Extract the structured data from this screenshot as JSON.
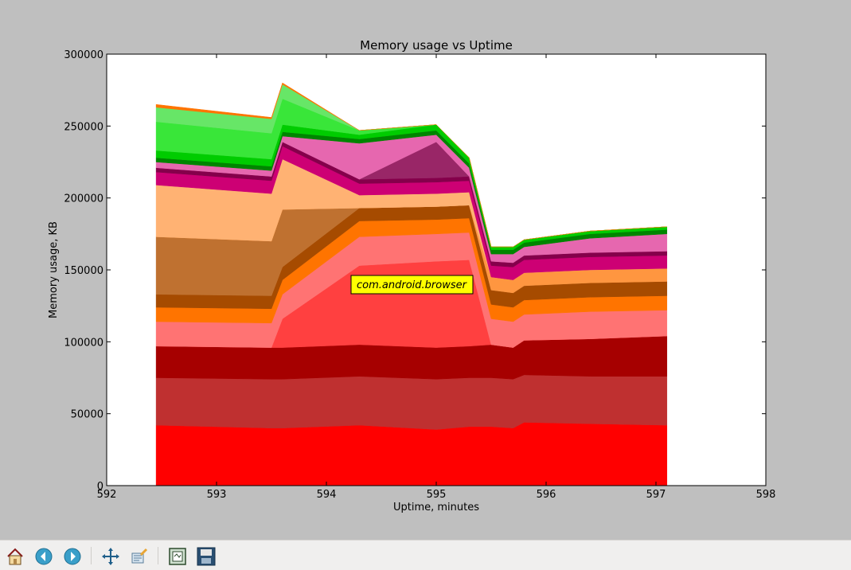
{
  "chart_data": {
    "type": "area",
    "stacked": true,
    "title": "Memory usage vs Uptime",
    "xlabel": "Uptime, minutes",
    "ylabel": "Memory usage, KB",
    "xlim": [
      592,
      598
    ],
    "ylim": [
      0,
      300000
    ],
    "xticks": [
      "592",
      "593",
      "594",
      "595",
      "596",
      "597",
      "598"
    ],
    "yticks": [
      "0",
      "50000",
      "100000",
      "150000",
      "200000",
      "250000",
      "300000"
    ],
    "grid": false,
    "annotation": "com.android.browser",
    "x": [
      592.45,
      593.5,
      593.6,
      594.3,
      595.0,
      595.3,
      595.5,
      595.7,
      595.8,
      596.4,
      597.1
    ],
    "series": [
      {
        "color": "#ff0000",
        "values": [
          42000,
          40000,
          40000,
          42000,
          39000,
          41000,
          41000,
          40000,
          44000,
          43000,
          42000
        ]
      },
      {
        "color": "#bf3030",
        "values": [
          33000,
          34000,
          34000,
          34000,
          35000,
          34000,
          34000,
          34000,
          33000,
          33000,
          34000
        ]
      },
      {
        "color": "#a60000",
        "values": [
          22000,
          22000,
          22000,
          22000,
          22000,
          22000,
          23000,
          22000,
          24000,
          26000,
          28000
        ]
      },
      {
        "color": "#ff4040",
        "values": [
          0,
          0,
          20000,
          55000,
          60000,
          60000,
          0,
          0,
          0,
          0,
          0
        ]
      },
      {
        "color": "#ff7373",
        "values": [
          17000,
          17000,
          17000,
          20000,
          19000,
          19000,
          18000,
          18000,
          18000,
          19000,
          18000
        ]
      },
      {
        "color": "#ff7400",
        "values": [
          10000,
          10000,
          10000,
          11000,
          10000,
          10000,
          10000,
          10000,
          10000,
          10000,
          10000
        ]
      },
      {
        "color": "#a64b00",
        "values": [
          9000,
          9000,
          9000,
          9000,
          9000,
          9000,
          10000,
          10000,
          10000,
          10000,
          10000
        ]
      },
      {
        "color": "#bf7130",
        "values": [
          40000,
          38000,
          40000,
          0,
          0,
          0,
          0,
          0,
          0,
          0,
          0
        ]
      },
      {
        "color": "#ff9640",
        "values": [
          0,
          0,
          0,
          0,
          0,
          0,
          9000,
          9000,
          9000,
          9000,
          9000
        ]
      },
      {
        "color": "#ffb273",
        "values": [
          36000,
          33000,
          35000,
          9000,
          9000,
          9000,
          0,
          0,
          0,
          0,
          0
        ]
      },
      {
        "color": "#cd0074",
        "values": [
          9000,
          9000,
          9000,
          8000,
          8000,
          8000,
          8000,
          9000,
          9000,
          9000,
          9000
        ]
      },
      {
        "color": "#85004b",
        "values": [
          3000,
          3000,
          3000,
          3000,
          3000,
          3000,
          3000,
          3000,
          3000,
          3000,
          3000
        ]
      },
      {
        "color": "#992667",
        "values": [
          0,
          0,
          0,
          0,
          25000,
          0,
          0,
          0,
          0,
          0,
          0
        ]
      },
      {
        "color": "#e667af",
        "values": [
          4000,
          4000,
          4000,
          25000,
          5000,
          6000,
          5000,
          6000,
          6000,
          10000,
          12000
        ]
      },
      {
        "color": "#008500",
        "values": [
          3000,
          3000,
          3000,
          3000,
          3000,
          3000,
          3000,
          3000,
          3000,
          3000,
          3000
        ]
      },
      {
        "color": "#00cc00",
        "values": [
          5000,
          5000,
          5000,
          3000,
          4000,
          4000,
          2000,
          2000,
          2000,
          2000,
          2000
        ]
      },
      {
        "color": "#39e639",
        "values": [
          20000,
          18000,
          18000,
          3000,
          0,
          0,
          0,
          0,
          0,
          0,
          0
        ]
      },
      {
        "color": "#67e667",
        "values": [
          10000,
          10000,
          10000,
          0,
          0,
          0,
          0,
          0,
          0,
          0,
          0
        ]
      },
      {
        "color": "#ff7400",
        "values": [
          2000,
          1000,
          1000,
          0,
          0,
          0,
          0,
          0,
          0,
          0,
          0
        ]
      }
    ]
  },
  "toolbar": {
    "buttons": [
      {
        "name": "home-button",
        "icon": "home-icon"
      },
      {
        "name": "back-button",
        "icon": "arrow-left-icon"
      },
      {
        "name": "forward-button",
        "icon": "arrow-right-icon"
      },
      {
        "name": "pan-button",
        "icon": "move-icon"
      },
      {
        "name": "zoom-button",
        "icon": "zoom-rect-icon"
      },
      {
        "name": "subplots-button",
        "icon": "subplots-icon"
      },
      {
        "name": "save-button",
        "icon": "floppy-disk-icon"
      }
    ]
  }
}
